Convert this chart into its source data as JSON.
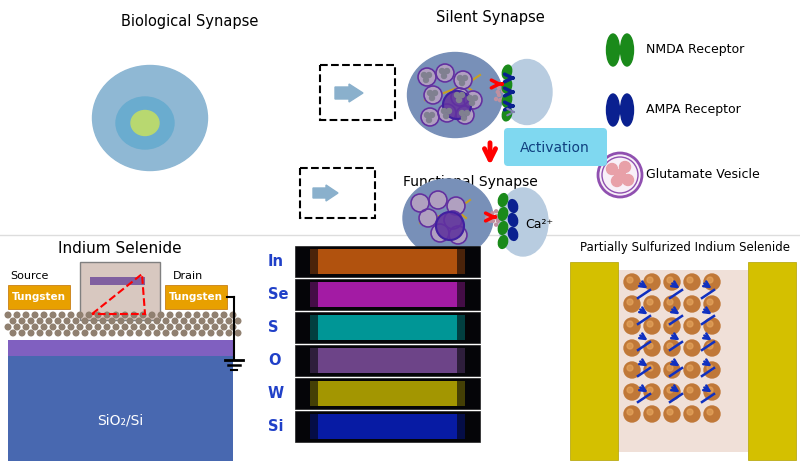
{
  "bg_color": "#ffffff",
  "neuron_color": "#8fb8d4",
  "neuron_nucleus_color": "#6aaccf",
  "neuron_nucleus_inner": "#b8d88a",
  "activation_box_color": "#7fd8f0",
  "nmda_color": "#1a8a1a",
  "ampa_color": "#0a2090",
  "vesicle_border": "#8040a0",
  "tungsten_color": "#e8a000",
  "sio2_color": "#7060b8",
  "si_color": "#4868b0",
  "dot_color": "#908070",
  "pre_color": "#7090b8",
  "post_color": "#a8c0d8",
  "labels": {
    "bio_synapse": "Biological Synapse",
    "silent_synapse": "Silent Synapse",
    "functional_synapse": "Functional Synapse",
    "nmda": "NMDA Receptor",
    "ampa": "AMPA Receptor",
    "glutamate": "Glutamate Vesicle",
    "indium_selenide": "Indium Selenide",
    "partial_sulfur": "Partially Sulfurized Indium Selenide",
    "source": "Source",
    "drain": "Drain",
    "tungsten": "Tungsten",
    "sio2si": "SiO₂/Si",
    "ca2": "Ca²⁺",
    "activation": "Activation",
    "elements": [
      "In",
      "Se",
      "S",
      "O",
      "W",
      "Si"
    ]
  },
  "element_colors": [
    "#d06010",
    "#c020c0",
    "#00b0b0",
    "#8050a0",
    "#c0b000",
    "#0820c0"
  ],
  "atom_color": "#c07838",
  "arrow_color": "#1030c0",
  "yellow_electrode": "#d4c000"
}
